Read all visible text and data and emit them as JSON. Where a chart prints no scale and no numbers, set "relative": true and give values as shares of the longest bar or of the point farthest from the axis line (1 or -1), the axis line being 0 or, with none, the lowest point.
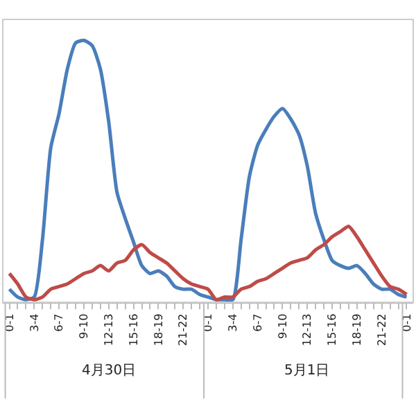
{
  "chart_data": {
    "type": "line",
    "relative": true,
    "marker": "none",
    "line_style": "solid",
    "categories": [
      "0-1",
      null,
      null,
      "3-4",
      null,
      null,
      "6-7",
      null,
      null,
      "9-10",
      null,
      null,
      "12-13",
      null,
      null,
      "15-16",
      null,
      null,
      "18-19",
      null,
      null,
      "21-22",
      null,
      null,
      "0-1",
      null,
      null,
      "3-4",
      null,
      null,
      "6-7",
      null,
      null,
      "9-10",
      null,
      null,
      "12-13",
      null,
      null,
      "15-16",
      null,
      null,
      "18-19",
      null,
      null,
      "21-22",
      null,
      null,
      "0-1"
    ],
    "series": [
      {
        "color": "#4a7ebb",
        "values": [
          0.05,
          0.02,
          0.01,
          0.02,
          0.24,
          0.59,
          0.72,
          0.89,
          0.99,
          1,
          0.98,
          0.89,
          0.69,
          0.42,
          0.32,
          0.23,
          0.14,
          0.11,
          0.12,
          0.1,
          0.06,
          0.05,
          0.05,
          0.03,
          0.02,
          0.01,
          0.01,
          0.01,
          0.24,
          0.48,
          0.6,
          0.66,
          0.71,
          0.74,
          0.7,
          0.64,
          0.52,
          0.34,
          0.24,
          0.16,
          0.14,
          0.13,
          0.14,
          0.11,
          0.07,
          0.05,
          0.05,
          0.03,
          0.02
        ]
      },
      {
        "color": "#be4b48",
        "values": [
          0.11,
          0.07,
          0.02,
          0.01,
          0.02,
          0.05,
          0.06,
          0.07,
          0.09,
          0.11,
          0.12,
          0.14,
          0.12,
          0.15,
          0.16,
          0.2,
          0.22,
          0.19,
          0.17,
          0.15,
          0.12,
          0.09,
          0.07,
          0.06,
          0.05,
          0.01,
          0.02,
          0.02,
          0.05,
          0.06,
          0.08,
          0.09,
          0.11,
          0.13,
          0.15,
          0.16,
          0.17,
          0.2,
          0.22,
          0.25,
          0.27,
          0.29,
          0.25,
          0.2,
          0.15,
          0.1,
          0.06,
          0.05,
          0.03
        ]
      }
    ],
    "annotations": [
      "4月30日",
      "5月1日"
    ]
  }
}
